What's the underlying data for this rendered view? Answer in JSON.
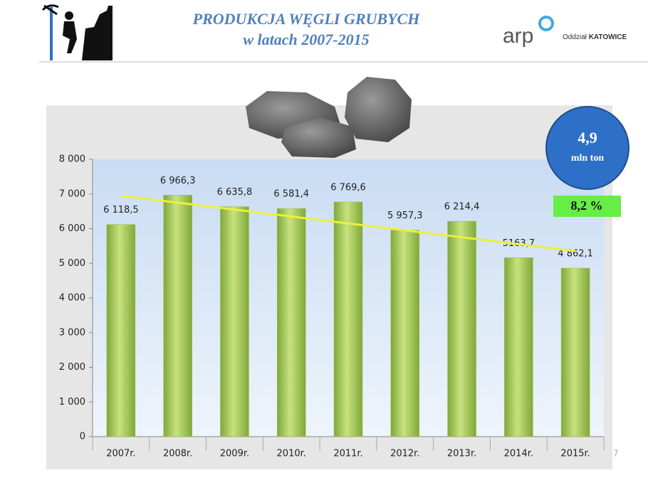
{
  "header": {
    "logo": "arp",
    "branch_prefix": "Oddział",
    "branch_name": "KATOWICE"
  },
  "annotations": {
    "bubble_value": "4,9",
    "bubble_unit": "mln ton",
    "change": "8,2 %",
    "page": "7"
  },
  "chart_data": {
    "type": "bar",
    "title": "PRODUKCJA WĘGLI GRUBYCH",
    "subtitle": "w latach 2007-2015",
    "categories": [
      "2007r.",
      "2008r.",
      "2009r.",
      "2010r.",
      "2011r.",
      "2012r.",
      "2013r.",
      "2014r.",
      "2015r."
    ],
    "values": [
      6118.5,
      6966.3,
      6635.8,
      6581.4,
      6769.6,
      5957.3,
      6214.4,
      5163.7,
      4862.1
    ],
    "value_labels": [
      "6 118,5",
      "6 966,3",
      "6 635,8",
      "6 581,4",
      "6 769,6",
      "5 957,3",
      "6 214,4",
      "5163,7",
      "4 862,1"
    ],
    "color": "#9bc24a",
    "ylim": [
      0,
      8000
    ],
    "yticks": [
      0,
      {
        "value": 1000,
        "label": "1 000"
      },
      {
        "value": 2000,
        "label": "2 000"
      },
      {
        "value": 3000,
        "label": "3 000"
      },
      {
        "value": 4000,
        "label": "4 000"
      },
      {
        "value": 5000,
        "label": "5 000"
      },
      {
        "value": 6000,
        "label": "6 000"
      },
      {
        "value": 7000,
        "label": "7 000"
      },
      {
        "value": 8000,
        "label": "8 000"
      }
    ],
    "grid": false,
    "trend": {
      "color": "#ecf03c",
      "values": [
        6950,
        5350
      ]
    }
  }
}
